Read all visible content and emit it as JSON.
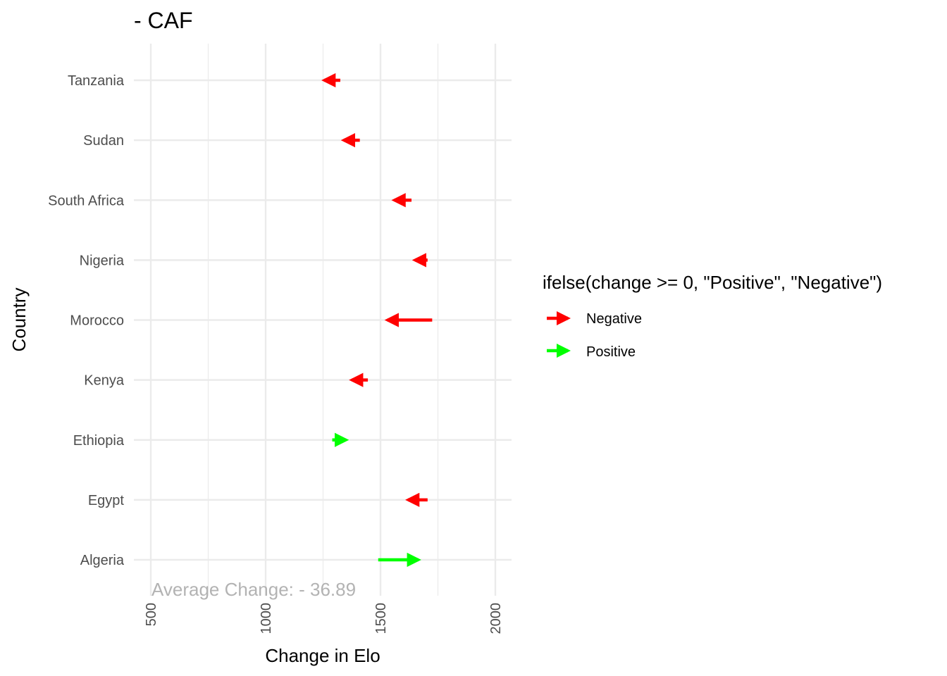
{
  "chart_data": {
    "type": "arrow",
    "title": "- CAF",
    "xlabel": "Change in Elo",
    "ylabel": "Country",
    "xlim": [
      500,
      2000
    ],
    "x_ticks": [
      "500",
      "1000",
      "1500",
      "2000"
    ],
    "x_tick_values": [
      500,
      1000,
      1500,
      2000
    ],
    "grid": true,
    "categories": [
      "Algeria",
      "Egypt",
      "Ethiopia",
      "Kenya",
      "Morocco",
      "Nigeria",
      "South Africa",
      "Sudan",
      "Tanzania"
    ],
    "series": [
      {
        "country": "Algeria",
        "start": 1490,
        "end": 1665,
        "group": "Positive"
      },
      {
        "country": "Egypt",
        "start": 1705,
        "end": 1620,
        "group": "Negative"
      },
      {
        "country": "Ethiopia",
        "start": 1290,
        "end": 1350,
        "group": "Positive"
      },
      {
        "country": "Kenya",
        "start": 1445,
        "end": 1375,
        "group": "Negative"
      },
      {
        "country": "Morocco",
        "start": 1725,
        "end": 1530,
        "group": "Negative"
      },
      {
        "country": "Nigeria",
        "start": 1705,
        "end": 1650,
        "group": "Negative"
      },
      {
        "country": "South Africa",
        "start": 1635,
        "end": 1560,
        "group": "Negative"
      },
      {
        "country": "Sudan",
        "start": 1410,
        "end": 1340,
        "group": "Negative"
      },
      {
        "country": "Tanzania",
        "start": 1325,
        "end": 1255,
        "group": "Negative"
      }
    ],
    "legend": {
      "title": "ifelse(change >= 0, \"Positive\", \"Negative\")",
      "position": "right",
      "items": [
        {
          "label": "Negative",
          "color": "#ff0000"
        },
        {
          "label": "Positive",
          "color": "#00ff00"
        }
      ]
    },
    "annotation": "Average Change: - 36.89"
  },
  "colors": {
    "Negative": "#ff0000",
    "Positive": "#00ff00",
    "grid": "#ebebeb",
    "annotation": "#b3b3b3"
  }
}
